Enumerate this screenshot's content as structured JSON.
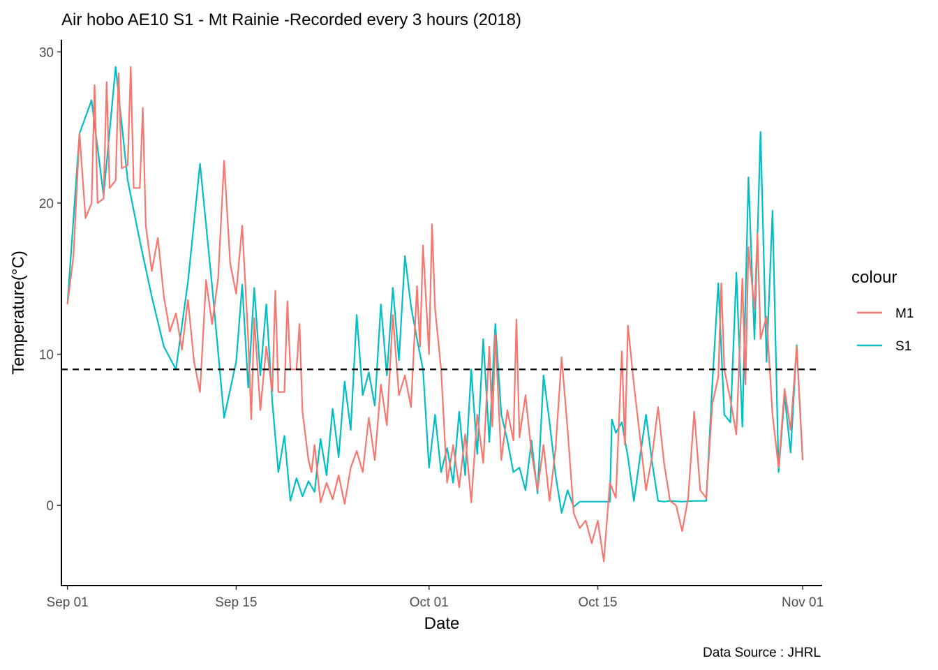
{
  "chart_data": {
    "type": "line",
    "title": "Air hobo AE10 S1 -  Mt Rainie -Recorded every 3 hours (2018)",
    "xlabel": "Date",
    "ylabel": "Temperature(°C)",
    "caption": "Data Source : JHRL",
    "x_unit": "date",
    "xlim": [
      "2018-08-31T12:00",
      "2018-11-02T12:00"
    ],
    "ylim": [
      -5.3,
      30.8
    ],
    "x_ticks": [
      {
        "date": "2018-09-01",
        "label": "Sep 01"
      },
      {
        "date": "2018-09-15",
        "label": "Sep 15"
      },
      {
        "date": "2018-10-01",
        "label": "Oct 01"
      },
      {
        "date": "2018-10-15",
        "label": "Oct 15"
      },
      {
        "date": "2018-11-01",
        "label": "Nov 01"
      }
    ],
    "y_ticks": [
      0,
      10,
      20,
      30
    ],
    "grid": false,
    "legend": {
      "title": "colour",
      "position": "right"
    },
    "reference_line": {
      "y": 9,
      "style": "dashed",
      "color": "#000000"
    },
    "series": [
      {
        "name": "S1",
        "color": "#00BFC4",
        "points": [
          [
            "2018-09-01T00:00",
            13.3
          ],
          [
            "2018-09-02T00:00",
            24.6
          ],
          [
            "2018-09-03T00:00",
            26.8
          ],
          [
            "2018-09-04T00:00",
            20.5
          ],
          [
            "2018-09-05T00:00",
            29.0
          ],
          [
            "2018-09-06T00:00",
            21.5
          ],
          [
            "2018-09-07T00:00",
            17.5
          ],
          [
            "2018-09-08T00:00",
            13.8
          ],
          [
            "2018-09-09T00:00",
            10.5
          ],
          [
            "2018-09-10T00:00",
            9.0
          ],
          [
            "2018-09-11T00:00",
            14.8
          ],
          [
            "2018-09-12T00:00",
            22.6
          ],
          [
            "2018-09-13T00:00",
            14.5
          ],
          [
            "2018-09-14T00:00",
            5.8
          ],
          [
            "2018-09-15T00:00",
            9.5
          ],
          [
            "2018-09-15T12:00",
            14.6
          ],
          [
            "2018-09-16T00:00",
            7.8
          ],
          [
            "2018-09-16T12:00",
            14.4
          ],
          [
            "2018-09-17T00:00",
            8.6
          ],
          [
            "2018-09-17T12:00",
            13.3
          ],
          [
            "2018-09-18T00:00",
            6.8
          ],
          [
            "2018-09-18T12:00",
            2.2
          ],
          [
            "2018-09-19T00:00",
            4.6
          ],
          [
            "2018-09-19T12:00",
            0.3
          ],
          [
            "2018-09-20T00:00",
            1.8
          ],
          [
            "2018-09-20T12:00",
            0.6
          ],
          [
            "2018-09-21T00:00",
            1.6
          ],
          [
            "2018-09-21T12:00",
            0.9
          ],
          [
            "2018-09-22T00:00",
            4.4
          ],
          [
            "2018-09-22T12:00",
            2.0
          ],
          [
            "2018-09-23T00:00",
            6.4
          ],
          [
            "2018-09-23T12:00",
            3.2
          ],
          [
            "2018-09-24T00:00",
            8.2
          ],
          [
            "2018-09-24T12:00",
            5.0
          ],
          [
            "2018-09-25T00:00",
            12.6
          ],
          [
            "2018-09-25T12:00",
            7.3
          ],
          [
            "2018-09-26T00:00",
            8.8
          ],
          [
            "2018-09-26T12:00",
            6.6
          ],
          [
            "2018-09-27T00:00",
            13.3
          ],
          [
            "2018-09-27T12:00",
            8.6
          ],
          [
            "2018-09-28T00:00",
            14.4
          ],
          [
            "2018-09-28T12:00",
            9.6
          ],
          [
            "2018-09-29T00:00",
            16.5
          ],
          [
            "2018-09-29T12:00",
            13.2
          ],
          [
            "2018-09-30T00:00",
            11.0
          ],
          [
            "2018-09-30T12:00",
            9.0
          ],
          [
            "2018-10-01T00:00",
            2.5
          ],
          [
            "2018-10-01T12:00",
            6.0
          ],
          [
            "2018-10-02T00:00",
            2.2
          ],
          [
            "2018-10-02T12:00",
            3.8
          ],
          [
            "2018-10-03T00:00",
            1.5
          ],
          [
            "2018-10-03T12:00",
            6.2
          ],
          [
            "2018-10-04T00:00",
            2.0
          ],
          [
            "2018-10-04T12:00",
            9.0
          ],
          [
            "2018-10-05T00:00",
            3.4
          ],
          [
            "2018-10-05T12:00",
            11.0
          ],
          [
            "2018-10-06T00:00",
            4.2
          ],
          [
            "2018-10-06T12:00",
            12.0
          ],
          [
            "2018-10-07T00:00",
            6.0
          ],
          [
            "2018-10-07T12:00",
            4.3
          ],
          [
            "2018-10-08T00:00",
            2.2
          ],
          [
            "2018-10-08T12:00",
            2.5
          ],
          [
            "2018-10-09T00:00",
            1.0
          ],
          [
            "2018-10-09T12:00",
            4.3
          ],
          [
            "2018-10-10T00:00",
            0.8
          ],
          [
            "2018-10-10T12:00",
            8.6
          ],
          [
            "2018-10-11T00:00",
            5.5
          ],
          [
            "2018-10-11T12:00",
            2.0
          ],
          [
            "2018-10-12T00:00",
            -0.5
          ],
          [
            "2018-10-12T12:00",
            1.0
          ],
          [
            "2018-10-13T00:00",
            -0.1
          ],
          [
            "2018-10-13T12:00",
            0.25
          ],
          [
            "2018-10-14T00:00",
            0.25
          ],
          [
            "2018-10-15T00:00",
            0.25
          ],
          [
            "2018-10-16T00:00",
            0.25
          ],
          [
            "2018-10-16T04:00",
            5.7
          ],
          [
            "2018-10-16T12:00",
            4.8
          ],
          [
            "2018-10-17T00:00",
            5.5
          ],
          [
            "2018-10-17T12:00",
            3.2
          ],
          [
            "2018-10-18T00:00",
            0.3
          ],
          [
            "2018-10-18T12:00",
            3.2
          ],
          [
            "2018-10-19T00:00",
            6.0
          ],
          [
            "2018-10-19T12:00",
            2.9
          ],
          [
            "2018-10-20T00:00",
            0.3
          ],
          [
            "2018-10-20T12:00",
            0.25
          ],
          [
            "2018-10-21T00:00",
            0.3
          ],
          [
            "2018-10-22T00:00",
            0.25
          ],
          [
            "2018-10-23T00:00",
            0.3
          ],
          [
            "2018-10-24T00:00",
            0.3
          ],
          [
            "2018-10-24T12:00",
            8.0
          ],
          [
            "2018-10-25T00:00",
            14.7
          ],
          [
            "2018-10-25T12:00",
            6.0
          ],
          [
            "2018-10-26T00:00",
            5.5
          ],
          [
            "2018-10-26T12:00",
            15.4
          ],
          [
            "2018-10-27T00:00",
            5.2
          ],
          [
            "2018-10-27T12:00",
            21.7
          ],
          [
            "2018-10-28T00:00",
            11.0
          ],
          [
            "2018-10-28T12:00",
            24.7
          ],
          [
            "2018-10-29T00:00",
            9.5
          ],
          [
            "2018-10-29T12:00",
            19.5
          ],
          [
            "2018-10-30T00:00",
            2.2
          ],
          [
            "2018-10-30T12:00",
            7.3
          ],
          [
            "2018-10-31T00:00",
            3.5
          ],
          [
            "2018-10-31T12:00",
            10.6
          ],
          [
            "2018-11-01T00:00",
            3.0
          ]
        ]
      },
      {
        "name": "M1",
        "color": "#F8766D",
        "points": [
          [
            "2018-09-01T00:00",
            13.3
          ],
          [
            "2018-09-01T12:00",
            16.5
          ],
          [
            "2018-09-02T00:00",
            24.6
          ],
          [
            "2018-09-02T12:00",
            19.0
          ],
          [
            "2018-09-03T00:00",
            20.0
          ],
          [
            "2018-09-03T06:00",
            27.8
          ],
          [
            "2018-09-03T12:00",
            20.0
          ],
          [
            "2018-09-04T00:00",
            20.3
          ],
          [
            "2018-09-04T06:00",
            28.0
          ],
          [
            "2018-09-04T12:00",
            21.0
          ],
          [
            "2018-09-05T00:00",
            21.5
          ],
          [
            "2018-09-05T06:00",
            28.6
          ],
          [
            "2018-09-05T12:00",
            22.3
          ],
          [
            "2018-09-06T00:00",
            22.5
          ],
          [
            "2018-09-06T06:00",
            29.0
          ],
          [
            "2018-09-06T12:00",
            21.0
          ],
          [
            "2018-09-07T00:00",
            21.0
          ],
          [
            "2018-09-07T06:00",
            26.3
          ],
          [
            "2018-09-07T12:00",
            18.5
          ],
          [
            "2018-09-08T00:00",
            15.5
          ],
          [
            "2018-09-08T12:00",
            17.7
          ],
          [
            "2018-09-09T00:00",
            13.8
          ],
          [
            "2018-09-09T12:00",
            11.5
          ],
          [
            "2018-09-10T00:00",
            12.7
          ],
          [
            "2018-09-10T12:00",
            10.3
          ],
          [
            "2018-09-11T00:00",
            13.6
          ],
          [
            "2018-09-11T12:00",
            9.5
          ],
          [
            "2018-09-12T00:00",
            7.5
          ],
          [
            "2018-09-12T12:00",
            14.9
          ],
          [
            "2018-09-13T00:00",
            12.0
          ],
          [
            "2018-09-13T12:00",
            15.0
          ],
          [
            "2018-09-14T00:00",
            22.8
          ],
          [
            "2018-09-14T12:00",
            16.0
          ],
          [
            "2018-09-15T00:00",
            14.0
          ],
          [
            "2018-09-15T12:00",
            18.5
          ],
          [
            "2018-09-16T00:00",
            11.0
          ],
          [
            "2018-09-16T06:00",
            5.7
          ],
          [
            "2018-09-16T12:00",
            12.4
          ],
          [
            "2018-09-17T00:00",
            6.3
          ],
          [
            "2018-09-17T12:00",
            10.5
          ],
          [
            "2018-09-18T00:00",
            7.5
          ],
          [
            "2018-09-18T06:00",
            14.2
          ],
          [
            "2018-09-18T12:00",
            7.5
          ],
          [
            "2018-09-19T00:00",
            7.5
          ],
          [
            "2018-09-19T06:00",
            13.5
          ],
          [
            "2018-09-19T12:00",
            9.0
          ],
          [
            "2018-09-20T00:00",
            9.0
          ],
          [
            "2018-09-20T06:00",
            12.0
          ],
          [
            "2018-09-20T12:00",
            6.2
          ],
          [
            "2018-09-21T00:00",
            3.0
          ],
          [
            "2018-09-21T06:00",
            2.2
          ],
          [
            "2018-09-21T12:00",
            4.0
          ],
          [
            "2018-09-22T00:00",
            0.2
          ],
          [
            "2018-09-22T12:00",
            1.5
          ],
          [
            "2018-09-23T00:00",
            0.4
          ],
          [
            "2018-09-23T12:00",
            2.0
          ],
          [
            "2018-09-24T00:00",
            0.1
          ],
          [
            "2018-09-24T12:00",
            2.5
          ],
          [
            "2018-09-25T00:00",
            3.6
          ],
          [
            "2018-09-25T12:00",
            2.2
          ],
          [
            "2018-09-26T00:00",
            5.8
          ],
          [
            "2018-09-26T12:00",
            3.0
          ],
          [
            "2018-09-27T00:00",
            8.0
          ],
          [
            "2018-09-27T12:00",
            5.3
          ],
          [
            "2018-09-28T00:00",
            12.6
          ],
          [
            "2018-09-28T12:00",
            7.3
          ],
          [
            "2018-09-29T00:00",
            8.6
          ],
          [
            "2018-09-29T12:00",
            6.5
          ],
          [
            "2018-09-30T00:00",
            14.5
          ],
          [
            "2018-09-30T06:00",
            10.5
          ],
          [
            "2018-09-30T12:00",
            17.2
          ],
          [
            "2018-10-01T00:00",
            10.0
          ],
          [
            "2018-10-01T06:00",
            18.6
          ],
          [
            "2018-10-01T12:00",
            13.0
          ],
          [
            "2018-10-02T00:00",
            9.0
          ],
          [
            "2018-10-02T12:00",
            1.5
          ],
          [
            "2018-10-03T00:00",
            4.0
          ],
          [
            "2018-10-03T12:00",
            1.2
          ],
          [
            "2018-10-04T00:00",
            4.7
          ],
          [
            "2018-10-04T12:00",
            0.2
          ],
          [
            "2018-10-05T00:00",
            6.0
          ],
          [
            "2018-10-05T12:00",
            2.8
          ],
          [
            "2018-10-06T00:00",
            10.5
          ],
          [
            "2018-10-06T06:00",
            5.2
          ],
          [
            "2018-10-06T12:00",
            11.3
          ],
          [
            "2018-10-07T00:00",
            3.0
          ],
          [
            "2018-10-07T12:00",
            6.3
          ],
          [
            "2018-10-08T00:00",
            4.3
          ],
          [
            "2018-10-08T06:00",
            12.3
          ],
          [
            "2018-10-08T12:00",
            4.5
          ],
          [
            "2018-10-09T00:00",
            7.3
          ],
          [
            "2018-10-09T12:00",
            3.5
          ],
          [
            "2018-10-10T00:00",
            1.0
          ],
          [
            "2018-10-10T12:00",
            4.0
          ],
          [
            "2018-10-11T00:00",
            0.3
          ],
          [
            "2018-10-11T12:00",
            3.8
          ],
          [
            "2018-10-12T00:00",
            9.8
          ],
          [
            "2018-10-12T12:00",
            5.0
          ],
          [
            "2018-10-13T00:00",
            -0.5
          ],
          [
            "2018-10-13T12:00",
            -1.5
          ],
          [
            "2018-10-14T00:00",
            -1.0
          ],
          [
            "2018-10-14T12:00",
            -2.5
          ],
          [
            "2018-10-15T00:00",
            -1.0
          ],
          [
            "2018-10-15T12:00",
            -3.7
          ],
          [
            "2018-10-16T00:00",
            1.5
          ],
          [
            "2018-10-16T12:00",
            0.5
          ],
          [
            "2018-10-17T00:00",
            10.2
          ],
          [
            "2018-10-17T06:00",
            4.0
          ],
          [
            "2018-10-17T12:00",
            11.9
          ],
          [
            "2018-10-18T00:00",
            8.0
          ],
          [
            "2018-10-18T12:00",
            4.5
          ],
          [
            "2018-10-19T00:00",
            1.0
          ],
          [
            "2018-10-19T12:00",
            3.2
          ],
          [
            "2018-10-20T00:00",
            6.5
          ],
          [
            "2018-10-20T12:00",
            2.8
          ],
          [
            "2018-10-21T00:00",
            0.3
          ],
          [
            "2018-10-21T12:00",
            0.0
          ],
          [
            "2018-10-22T00:00",
            -1.7
          ],
          [
            "2018-10-22T12:00",
            0.5
          ],
          [
            "2018-10-23T00:00",
            6.2
          ],
          [
            "2018-10-23T12:00",
            1.0
          ],
          [
            "2018-10-24T00:00",
            0.5
          ],
          [
            "2018-10-24T12:00",
            6.7
          ],
          [
            "2018-10-25T00:00",
            8.5
          ],
          [
            "2018-10-25T06:00",
            14.7
          ],
          [
            "2018-10-25T12:00",
            9.0
          ],
          [
            "2018-10-26T00:00",
            7.0
          ],
          [
            "2018-10-26T12:00",
            4.7
          ],
          [
            "2018-10-27T00:00",
            15.0
          ],
          [
            "2018-10-27T06:00",
            8.0
          ],
          [
            "2018-10-27T12:00",
            17.1
          ],
          [
            "2018-10-28T00:00",
            13.0
          ],
          [
            "2018-10-28T06:00",
            18.0
          ],
          [
            "2018-10-28T12:00",
            11.0
          ],
          [
            "2018-10-29T00:00",
            12.5
          ],
          [
            "2018-10-29T12:00",
            6.0
          ],
          [
            "2018-10-30T00:00",
            2.5
          ],
          [
            "2018-10-30T12:00",
            7.7
          ],
          [
            "2018-10-31T00:00",
            5.0
          ],
          [
            "2018-10-31T12:00",
            10.5
          ],
          [
            "2018-11-01T00:00",
            3.0
          ]
        ]
      }
    ]
  }
}
